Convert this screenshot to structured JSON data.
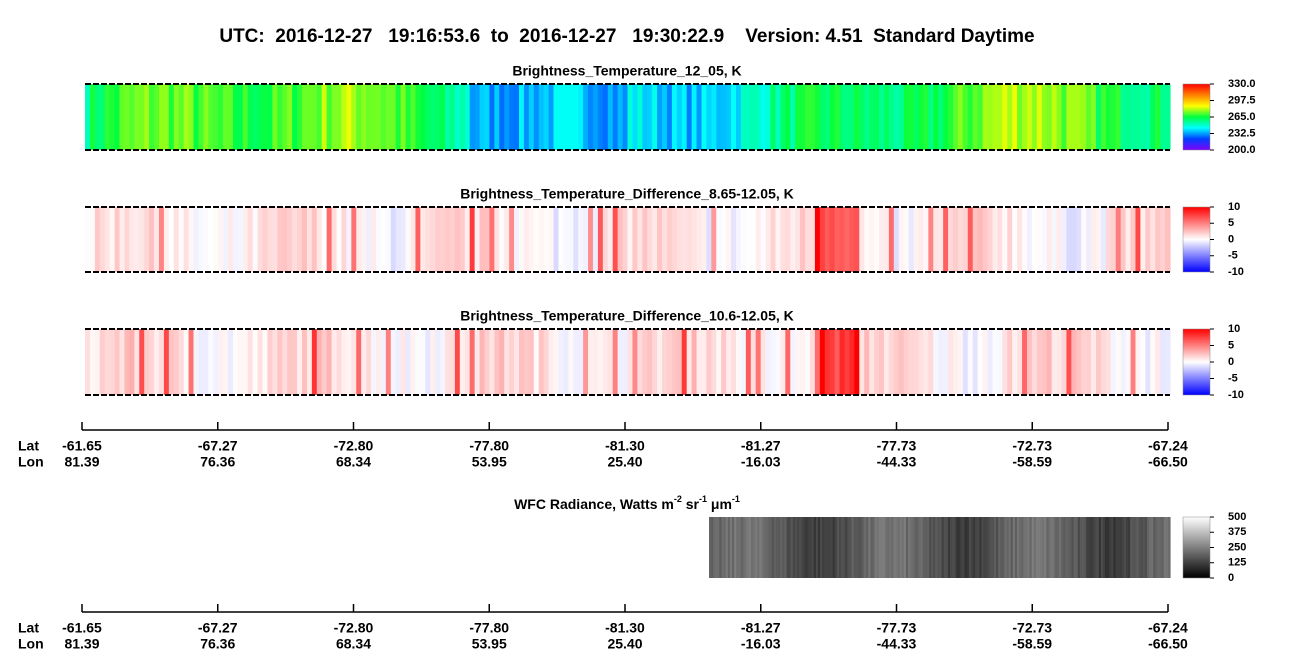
{
  "title": "UTC:  2016-12-27   19:16:53.6  to  2016-12-27   19:30:22.9    Version: 4.51  Standard Daytime",
  "chart_data": [
    {
      "type": "image",
      "title": "Brightness_Temperature_12_05, K",
      "colormap": [
        "#8000ff",
        "#0040ff",
        "#00ffff",
        "#00ff40",
        "#ffff00",
        "#ff8000",
        "#ff0000"
      ],
      "ylim": [
        200,
        330
      ],
      "yticks": [
        {
          "value": 200,
          "label": "200.0"
        },
        {
          "value": 232.5,
          "label": "232.5"
        },
        {
          "value": 265,
          "label": "265.0"
        },
        {
          "value": 297.5,
          "label": "297.5"
        },
        {
          "value": 330,
          "label": "330.0"
        }
      ]
    },
    {
      "type": "image",
      "title": "Brightness_Temperature_Difference_8.65-12.05, K",
      "colormap": [
        "#0000ff",
        "#ffffff",
        "#ff0000"
      ],
      "ylim": [
        -10,
        10
      ],
      "yticks": [
        -10,
        -5,
        0,
        5,
        10
      ]
    },
    {
      "type": "image",
      "title": "Brightness_Temperature_Difference_10.6-12.05, K",
      "colormap": [
        "#0000ff",
        "#ffffff",
        "#ff0000"
      ],
      "ylim": [
        -10,
        10
      ],
      "yticks": [
        -10,
        -5,
        0,
        5,
        10
      ]
    },
    {
      "type": "image",
      "title": [
        "WFC Radiance, Watts m",
        "-2",
        " sr",
        "-1",
        " μm",
        "-1"
      ],
      "colormap": [
        "#000000",
        "#ffffff"
      ],
      "ylim": [
        0,
        500
      ],
      "yticks": [
        0,
        125,
        250,
        375,
        500
      ]
    }
  ],
  "axes": [
    {
      "lat_label": "Lat",
      "lon_label": "Lon",
      "lat": [
        "-61.65",
        "-67.27",
        "-72.80",
        "-77.80",
        "-81.30",
        "-81.27",
        "-77.73",
        "-72.73",
        "-67.24"
      ],
      "lon": [
        "81.39",
        "76.36",
        "68.34",
        "53.95",
        "25.40",
        "-16.03",
        "-44.33",
        "-58.59",
        "-66.50"
      ]
    },
    {
      "lat_label": "Lat",
      "lon_label": "Lon",
      "lat": [
        "-61.65",
        "-67.27",
        "-72.80",
        "-77.80",
        "-81.30",
        "-81.27",
        "-77.73",
        "-72.73",
        "-67.24"
      ],
      "lon": [
        "81.39",
        "76.36",
        "68.34",
        "53.95",
        "25.40",
        "-16.03",
        "-44.33",
        "-58.59",
        "-66.50"
      ]
    }
  ]
}
